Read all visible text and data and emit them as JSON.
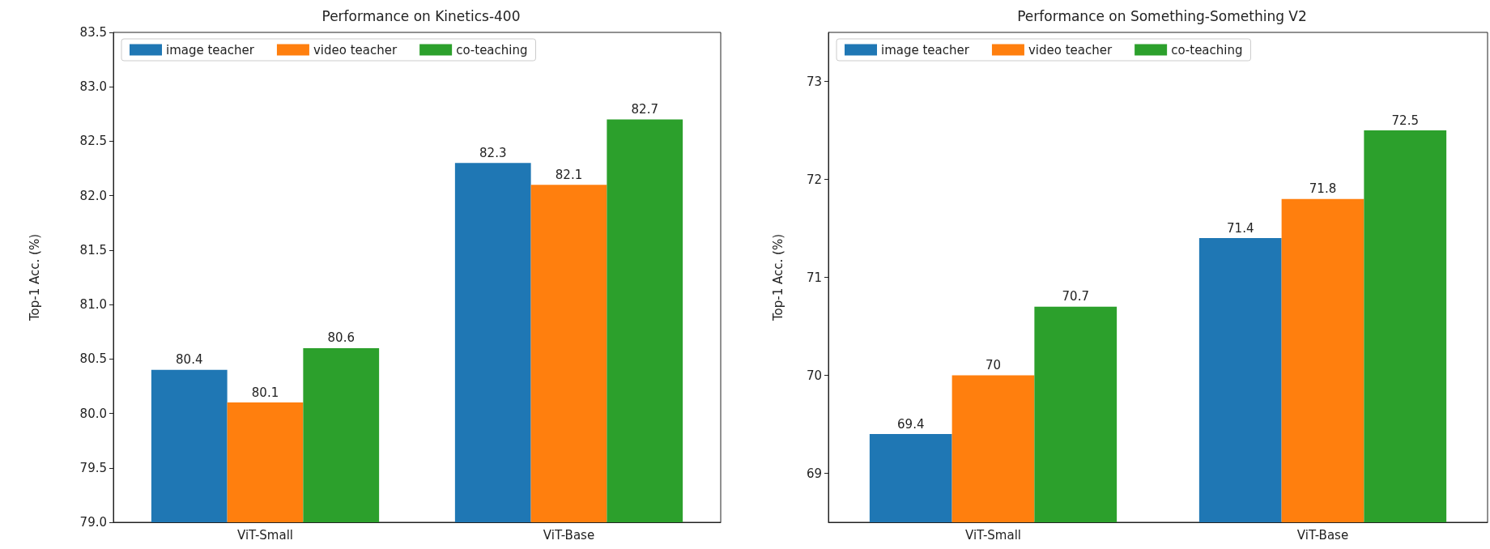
{
  "chart_data": [
    {
      "type": "bar",
      "title": "Performance on Kinetics-400",
      "ylabel": "Top-1 Acc. (%)",
      "categories": [
        "ViT-Small",
        "ViT-Base"
      ],
      "series": [
        {
          "name": "image teacher",
          "color": "#1f77b4",
          "values": [
            80.4,
            82.3
          ]
        },
        {
          "name": "video teacher",
          "color": "#ff7f0e",
          "values": [
            80.1,
            82.1
          ]
        },
        {
          "name": "co-teaching",
          "color": "#2ca02c",
          "values": [
            80.6,
            82.7
          ]
        }
      ],
      "ylim": [
        79.0,
        83.5
      ],
      "yticks": [
        {
          "value": 79,
          "label": "79.0"
        },
        79.5,
        {
          "value": 80,
          "label": "80.0"
        },
        80.5,
        {
          "value": 81,
          "label": "81.0"
        },
        81.5,
        {
          "value": 82,
          "label": "82.0"
        },
        82.5,
        {
          "value": 83,
          "label": "83.0"
        },
        83.5
      ],
      "data_labels": true,
      "legend": "top left",
      "grid": false
    },
    {
      "type": "bar",
      "title": "Performance on Something-Something V2",
      "ylabel": "Top-1 Acc. (%)",
      "categories": [
        "ViT-Small",
        "ViT-Base"
      ],
      "series": [
        {
          "name": "image teacher",
          "color": "#1f77b4",
          "values": [
            69.4,
            71.4
          ]
        },
        {
          "name": "video teacher",
          "color": "#ff7f0e",
          "values": [
            70,
            71.8
          ]
        },
        {
          "name": "co-teaching",
          "color": "#2ca02c",
          "values": [
            70.7,
            72.5
          ]
        }
      ],
      "ylim": [
        68.5,
        73.5
      ],
      "yticks": [
        69,
        70,
        71,
        72,
        73
      ],
      "data_labels": true,
      "legend": "top left",
      "grid": false
    }
  ]
}
